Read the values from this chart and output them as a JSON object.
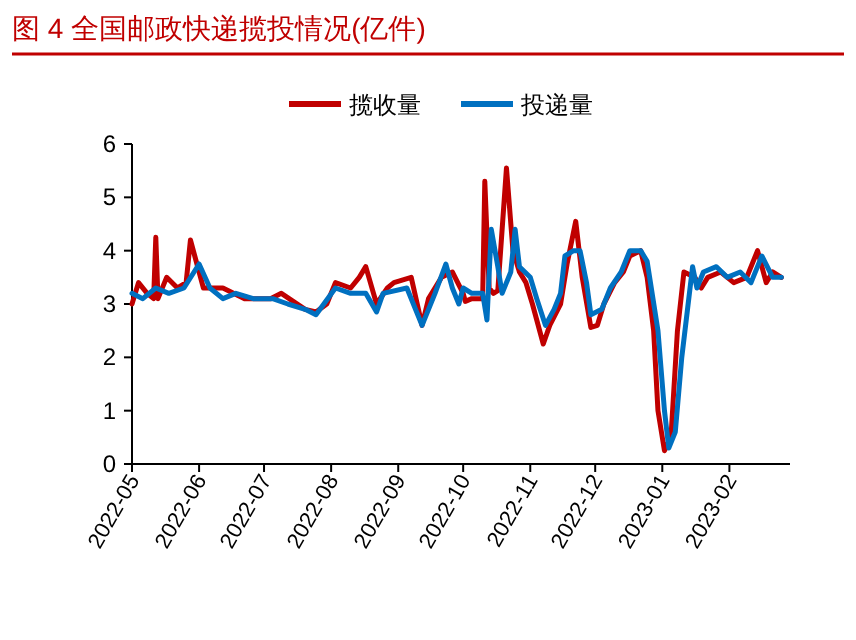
{
  "chart_data": {
    "type": "line",
    "title": "图 4  全国邮政快递揽投情况(亿件)",
    "xlim": [
      "2022-05",
      "2023-03"
    ],
    "xticks": [
      "2022-05",
      "2022-06",
      "2022-07",
      "2022-08",
      "2022-09",
      "2022-10",
      "2022-11",
      "2022-12",
      "2023-01",
      "2023-02"
    ],
    "ylim": [
      0,
      6
    ],
    "yticks": [
      0,
      1,
      2,
      3,
      4,
      5,
      6
    ],
    "grid": false,
    "legend": "top",
    "line_style": "solid",
    "marker": "none",
    "series": [
      {
        "name": "揽收量",
        "color": "#c00000",
        "x": [
          "2022-05-01",
          "2022-05-04",
          "2022-05-08",
          "2022-05-11",
          "2022-05-12",
          "2022-05-13",
          "2022-05-17",
          "2022-05-22",
          "2022-05-26",
          "2022-05-28",
          "2022-05-30",
          "2022-06-03",
          "2022-06-12",
          "2022-06-22",
          "2022-07-04",
          "2022-07-09",
          "2022-07-20",
          "2022-07-25",
          "2022-07-30",
          "2022-08-03",
          "2022-08-10",
          "2022-08-14",
          "2022-08-17",
          "2022-08-22",
          "2022-08-27",
          "2022-08-30",
          "2022-09-07",
          "2022-09-12",
          "2022-09-15",
          "2022-09-21",
          "2022-09-26",
          "2022-10-01",
          "2022-10-02",
          "2022-10-05",
          "2022-10-10",
          "2022-10-11",
          "2022-10-13",
          "2022-10-15",
          "2022-10-17",
          "2022-10-21",
          "2022-10-24",
          "2022-10-27",
          "2022-10-30",
          "2022-11-02",
          "2022-11-07",
          "2022-11-10",
          "2022-11-15",
          "2022-11-18",
          "2022-11-22",
          "2022-11-25",
          "2022-11-29",
          "2022-12-02",
          "2022-12-05",
          "2022-12-10",
          "2022-12-14",
          "2022-12-17",
          "2022-12-22",
          "2022-12-25",
          "2022-12-28",
          "2022-12-30",
          "2023-01-02",
          "2023-01-05",
          "2023-01-08",
          "2023-01-11",
          "2023-01-16",
          "2023-01-19",
          "2023-01-22",
          "2023-01-28",
          "2023-02-03",
          "2023-02-09",
          "2023-02-14",
          "2023-02-18",
          "2023-02-21",
          "2023-02-25"
        ],
        "values": [
          3.0,
          3.4,
          3.2,
          3.1,
          4.25,
          3.1,
          3.5,
          3.3,
          3.4,
          4.2,
          3.9,
          3.3,
          3.3,
          3.1,
          3.1,
          3.2,
          2.9,
          2.85,
          3.0,
          3.4,
          3.3,
          3.5,
          3.7,
          3.0,
          3.3,
          3.4,
          3.5,
          2.6,
          3.1,
          3.5,
          3.6,
          3.2,
          3.05,
          3.1,
          3.1,
          5.3,
          3.3,
          3.2,
          3.25,
          5.55,
          4.0,
          3.6,
          3.4,
          3.0,
          2.25,
          2.6,
          3.0,
          3.75,
          4.55,
          3.5,
          2.56,
          2.6,
          3.0,
          3.4,
          3.6,
          3.9,
          4.0,
          3.5,
          2.5,
          1.0,
          0.25,
          0.5,
          2.5,
          3.6,
          3.5,
          3.3,
          3.5,
          3.6,
          3.4,
          3.5,
          4.0,
          3.4,
          3.6,
          3.5
        ]
      },
      {
        "name": "投递量",
        "color": "#0070c0",
        "x": [
          "2022-05-01",
          "2022-05-06",
          "2022-05-12",
          "2022-05-18",
          "2022-05-25",
          "2022-06-01",
          "2022-06-06",
          "2022-06-12",
          "2022-06-18",
          "2022-06-26",
          "2022-07-05",
          "2022-07-12",
          "2022-07-20",
          "2022-07-25",
          "2022-08-03",
          "2022-08-10",
          "2022-08-17",
          "2022-08-22",
          "2022-08-25",
          "2022-09-05",
          "2022-09-12",
          "2022-09-18",
          "2022-09-23",
          "2022-09-26",
          "2022-09-29",
          "2022-10-01",
          "2022-10-05",
          "2022-10-10",
          "2022-10-12",
          "2022-10-14",
          "2022-10-17",
          "2022-10-19",
          "2022-10-23",
          "2022-10-25",
          "2022-10-27",
          "2022-11-01",
          "2022-11-04",
          "2022-11-08",
          "2022-11-12",
          "2022-11-15",
          "2022-11-17",
          "2022-11-21",
          "2022-11-24",
          "2022-11-27",
          "2022-11-29",
          "2022-12-04",
          "2022-12-08",
          "2022-12-13",
          "2022-12-17",
          "2022-12-22",
          "2022-12-25",
          "2022-12-30",
          "2023-01-02",
          "2023-01-04",
          "2023-01-07",
          "2023-01-10",
          "2023-01-15",
          "2023-01-17",
          "2023-01-20",
          "2023-01-26",
          "2023-01-31",
          "2023-02-06",
          "2023-02-11",
          "2023-02-16",
          "2023-02-21",
          "2023-02-25"
        ],
        "values": [
          3.2,
          3.1,
          3.3,
          3.2,
          3.3,
          3.75,
          3.3,
          3.1,
          3.2,
          3.1,
          3.1,
          3.0,
          2.9,
          2.8,
          3.3,
          3.2,
          3.2,
          2.85,
          3.2,
          3.3,
          2.6,
          3.2,
          3.75,
          3.3,
          3.0,
          3.3,
          3.2,
          3.2,
          2.7,
          4.4,
          3.7,
          3.2,
          3.6,
          4.4,
          3.7,
          3.5,
          3.1,
          2.6,
          2.9,
          3.2,
          3.9,
          4.0,
          4.0,
          3.4,
          2.8,
          2.9,
          3.3,
          3.6,
          4.0,
          4.0,
          3.8,
          2.5,
          1.0,
          0.3,
          0.6,
          2.0,
          3.7,
          3.3,
          3.6,
          3.7,
          3.5,
          3.6,
          3.4,
          3.9,
          3.5,
          3.5
        ]
      }
    ]
  }
}
